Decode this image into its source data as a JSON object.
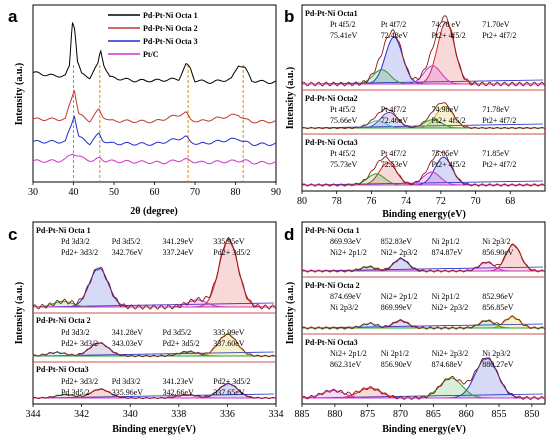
{
  "chart_data": [
    {
      "panel": "a",
      "type": "line",
      "xlabel": "2θ (degree)",
      "ylabel": "Intensity (a.u.)",
      "xlim": [
        30,
        90
      ],
      "xticks": [
        "30",
        "40",
        "50",
        "60",
        "70",
        "80",
        "90"
      ],
      "reference_lines_x": [
        40.0,
        46.5,
        68.3,
        81.9
      ],
      "series": [
        {
          "name": "Pd-Pt-Ni Octa 1",
          "color": "#000000",
          "offset": 6.0,
          "x": [
            30,
            35,
            38,
            39,
            39.7,
            40.3,
            41,
            42,
            44,
            46,
            46.7,
            47.5,
            49,
            55,
            60,
            66,
            67.8,
            68.8,
            70,
            74,
            79,
            80.8,
            82.3,
            84,
            88,
            90
          ],
          "y": [
            0.8,
            0.6,
            0.6,
            1.2,
            4.0,
            3.6,
            1.5,
            0.7,
            0.5,
            1.3,
            2.2,
            1.3,
            0.5,
            0.3,
            0.3,
            0.4,
            1.3,
            1.1,
            0.3,
            0.2,
            0.4,
            1.3,
            1.1,
            0.3,
            0.2,
            0.2
          ]
        },
        {
          "name": "Pd-Pt-Ni Octa 2",
          "color": "#c0392b",
          "offset": 3.6,
          "x": [
            30,
            38,
            39.5,
            40.2,
            41.3,
            44,
            46.3,
            47.2,
            49,
            60,
            67.8,
            68.9,
            71,
            80.7,
            82.2,
            84,
            90
          ],
          "y": [
            0.3,
            0.3,
            1.6,
            2.2,
            0.6,
            0.2,
            0.9,
            0.5,
            0.2,
            0.15,
            0.7,
            0.3,
            0.15,
            0.6,
            0.3,
            0.15,
            0.15
          ]
        },
        {
          "name": "Pd-Pt-Ni Octa 3",
          "color": "#1f2fd1",
          "offset": 2.2,
          "x": [
            30,
            38,
            39.5,
            40.2,
            41.3,
            44,
            46.3,
            47.2,
            49,
            60,
            67.8,
            68.9,
            71,
            80.7,
            82.2,
            84,
            90
          ],
          "y": [
            0.3,
            0.3,
            1.4,
            2.0,
            0.6,
            0.2,
            0.8,
            0.4,
            0.2,
            0.15,
            0.6,
            0.3,
            0.15,
            0.5,
            0.3,
            0.15,
            0.15
          ]
        },
        {
          "name": "Pt/C",
          "color": "#cc33cc",
          "offset": 1.0,
          "x": [
            30,
            36,
            38,
            39.8,
            42,
            45,
            46.5,
            48,
            55,
            62,
            67.5,
            69,
            72,
            80,
            82,
            84,
            90
          ],
          "y": [
            0.3,
            0.3,
            0.4,
            0.8,
            0.5,
            0.3,
            0.5,
            0.3,
            0.25,
            0.2,
            0.4,
            0.3,
            0.2,
            0.3,
            0.35,
            0.2,
            0.2
          ]
        }
      ],
      "ylim": [
        0,
        11
      ]
    },
    {
      "panel": "b",
      "type": "line",
      "xlabel": "Binding energy(eV)",
      "ylabel": "Intensity (a.u.)",
      "xlim": [
        80,
        66
      ],
      "xticks": [
        "80",
        "78",
        "76",
        "74",
        "72",
        "70",
        "68"
      ],
      "subpanels": [
        {
          "title": "Pd-Pt-Ni Octa1",
          "annotations": [
            "Pt 4f5/2",
            "Pt 4f7/2",
            "74.70 eV",
            "71.70eV",
            "75.41eV",
            "72.48eV",
            "Pt2+ 4f5/2",
            "Pt2+ 4f7/2"
          ],
          "peaks": [
            {
              "center": 74.7,
              "height": 0.72
            },
            {
              "center": 71.7,
              "height": 0.95
            },
            {
              "center": 75.41,
              "height": 0.22
            },
            {
              "center": 72.48,
              "height": 0.28
            }
          ]
        },
        {
          "title": "Pd-Pt-Ni Octa2",
          "annotations": [
            "Pt 4f5/2",
            "Pt 4f7/2",
            "74.98eV",
            "71.78eV",
            "75.66eV",
            "72.46eV",
            "Pt2+ 4f5/2",
            "Pt2+ 4f7/2"
          ],
          "peaks": [
            {
              "center": 74.98,
              "height": 0.65
            },
            {
              "center": 71.78,
              "height": 0.9
            },
            {
              "center": 75.66,
              "height": 0.3
            },
            {
              "center": 72.46,
              "height": 0.35
            }
          ]
        },
        {
          "title": "Pd-Pt-Ni Octa3",
          "annotations": [
            "Pt 4f5/2",
            "Pt 4f7/2",
            "75.05eV",
            "71.85eV",
            "75.73eV",
            "72.53eV",
            "Pt2+ 4f5/2",
            "Pt2+ 4f7/2"
          ],
          "peaks": [
            {
              "center": 75.05,
              "height": 0.6
            },
            {
              "center": 71.85,
              "height": 0.75
            },
            {
              "center": 75.73,
              "height": 0.3
            },
            {
              "center": 72.53,
              "height": 0.35
            }
          ]
        }
      ]
    },
    {
      "panel": "c",
      "type": "line",
      "xlabel": "Binding energy(eV)",
      "ylabel": "Intensity (a.u.)",
      "xlim": [
        344,
        334
      ],
      "xticks": [
        "344",
        "342",
        "340",
        "338",
        "336",
        "334"
      ],
      "subpanels": [
        {
          "title": "Pd-Pt-Ni Octa 1",
          "annotations": [
            "Pd 3d3/2",
            "Pd 3d5/2",
            "341.29eV",
            "335.95eV",
            "Pd2+ 3d3/2",
            "342.76eV",
            "337.24eV",
            "Pd2+ 3d5/2"
          ],
          "peaks": [
            {
              "center": 341.29,
              "height": 0.55
            },
            {
              "center": 335.95,
              "height": 0.95
            },
            {
              "center": 342.76,
              "height": 0.08
            },
            {
              "center": 337.24,
              "height": 0.1
            }
          ]
        },
        {
          "title": "Pd-Pt-Ni Octa 2",
          "annotations": [
            "Pd 3d3/2",
            "341.28eV",
            "Pd 3d5/2",
            "335.99eV",
            "Pd2+ 3d3/2",
            "343.03eV",
            "Pd2+ 3d5/2",
            "337.60eV"
          ],
          "peaks": [
            {
              "center": 341.28,
              "height": 0.45
            },
            {
              "center": 335.99,
              "height": 0.75
            },
            {
              "center": 343.03,
              "height": 0.12
            },
            {
              "center": 337.6,
              "height": 0.15
            }
          ]
        },
        {
          "title": "Pd-Pt-Ni Octa3",
          "annotations": [
            "Pd2+ 3d3/2",
            "Pd 3d3/2",
            "341.23eV",
            "Pd2+ 3d5/2",
            "Pd 3d5/2",
            "335.96eV",
            "342.66eV",
            "337.65eV"
          ],
          "peaks": [
            {
              "center": 341.23,
              "height": 0.4
            },
            {
              "center": 335.96,
              "height": 0.65
            },
            {
              "center": 342.66,
              "height": 0.15
            },
            {
              "center": 337.65,
              "height": 0.15
            }
          ]
        }
      ]
    },
    {
      "panel": "d",
      "type": "line",
      "xlabel": "Binding energy(eV)",
      "ylabel": "Intensity (a.u.)",
      "xlim": [
        885,
        848
      ],
      "xticks": [
        "885",
        "880",
        "875",
        "870",
        "865",
        "860",
        "855",
        "850"
      ],
      "subpanels": [
        {
          "title": "Pd-Pt-Ni Octa 1",
          "annotations": [
            "869.93eV",
            "852.83eV",
            "Ni 2p1/2",
            "Ni 2p3/2",
            "Ni2+ 2p1/2",
            "Ni2+ 2p3/2",
            "874.87eV",
            "856.90eV"
          ],
          "peaks": [
            {
              "center": 869.93,
              "height": 0.35
            },
            {
              "center": 852.83,
              "height": 0.75
            },
            {
              "center": 874.87,
              "height": 0.12
            },
            {
              "center": 856.9,
              "height": 0.25
            }
          ]
        },
        {
          "title": "Pd-Pt-Ni Octa 2",
          "annotations": [
            "874.69eV",
            "Ni2+ 2p1/2",
            "Ni 2p1/2",
            "852.96eV",
            "Ni 2p3/2",
            "869.99eV",
            "Ni2+ 2p3/2",
            "856.85eV"
          ],
          "peaks": [
            {
              "center": 869.99,
              "height": 0.2
            },
            {
              "center": 852.96,
              "height": 0.3
            },
            {
              "center": 874.69,
              "height": 0.12
            },
            {
              "center": 856.85,
              "height": 0.2
            }
          ]
        },
        {
          "title": "Pd-Pt-Ni Octa3",
          "annotations": [
            "Ni2+ 2p1/2",
            "Ni 2p1/2",
            "Ni2+ 2p3/2",
            "Ni 2p3/2",
            "862.31eV",
            "856.90eV",
            "874.68eV",
            "880.27eV"
          ],
          "peaks": [
            {
              "center": 874.68,
              "height": 0.2
            },
            {
              "center": 856.9,
              "height": 0.8
            },
            {
              "center": 862.31,
              "height": 0.4
            },
            {
              "center": 880.27,
              "height": 0.15
            }
          ]
        }
      ]
    }
  ],
  "figure": {
    "panel_letters": [
      "a",
      "b",
      "c",
      "d"
    ],
    "colors": {
      "fit_red": "#d62728",
      "fit_blue": "#2233cc",
      "fit_green": "#2ca02c",
      "fit_magenta": "#cc33cc",
      "fit_orange": "#ff7f0e",
      "fit_cyan": "#3fb7d0",
      "fit_yellow": "#c8b400",
      "fit_purple": "#6a3d9a",
      "fit_darkred": "#8b1a1a",
      "fit_pink": "#d1579b",
      "fit_olive": "#7f8c3a",
      "ref_orange": "#e08a00",
      "sep_red": "#c85050",
      "arrow_magenta": "#cc0066"
    }
  }
}
